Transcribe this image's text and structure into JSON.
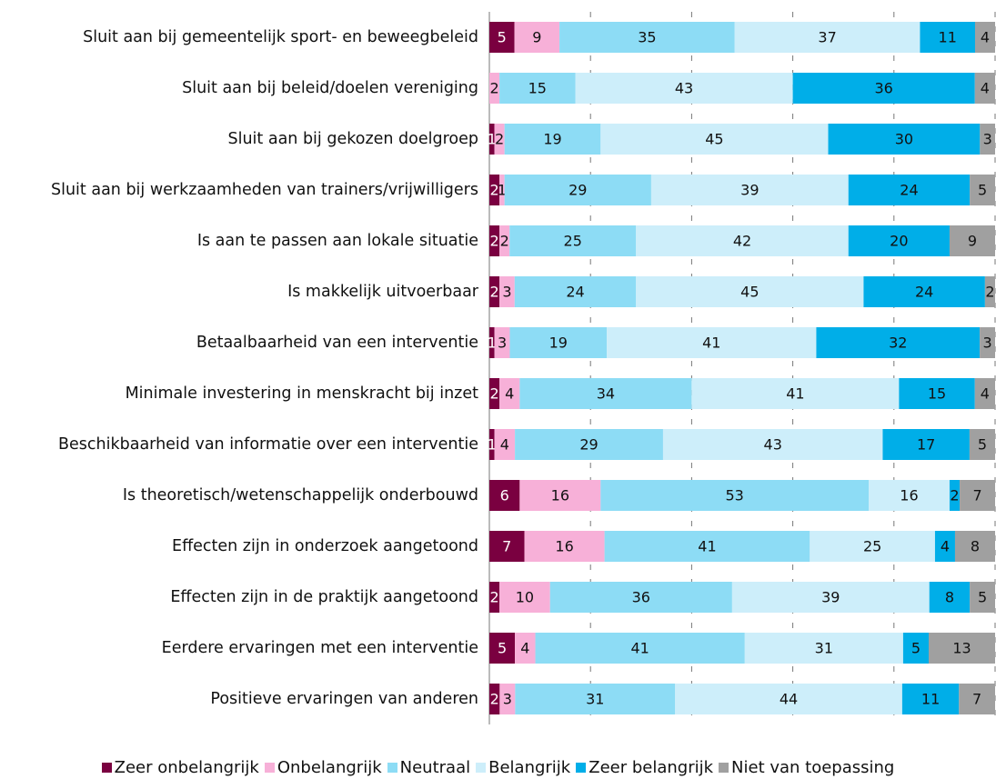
{
  "chart_data": {
    "type": "stacked-bar-100",
    "categories": [
      "Sluit aan bij gemeentelijk sport- en beweegbeleid",
      "Sluit aan bij beleid/doelen vereniging",
      "Sluit aan bij gekozen doelgroep",
      "Sluit aan bij werkzaamheden van trainers/vrijwilligers",
      "Is aan te passen aan lokale situatie",
      "Is makkelijk uitvoerbaar",
      "Betaalbaarheid van een interventie",
      "Minimale investering in menskracht bij inzet",
      "Beschikbaarheid van informatie over een interventie",
      "Is theoretisch/wetenschappelijk onderbouwd",
      "Effecten zijn in onderzoek aangetoond",
      "Effecten zijn in de praktijk aangetoond",
      "Eerdere ervaringen met een interventie",
      "Positieve ervaringen van anderen"
    ],
    "series": [
      {
        "name": "Zeer onbelangrijk",
        "color": "#7a0040",
        "values": [
          5,
          null,
          1,
          2,
          2,
          2,
          1,
          2,
          1,
          6,
          7,
          2,
          5,
          2
        ]
      },
      {
        "name": "Onbelangrijk",
        "color": "#f7b0d8",
        "values": [
          9,
          2,
          2,
          1,
          2,
          3,
          3,
          4,
          4,
          16,
          16,
          10,
          4,
          3
        ]
      },
      {
        "name": "Neutraal",
        "color": "#8ddcf5",
        "values": [
          35,
          15,
          19,
          29,
          25,
          24,
          19,
          34,
          29,
          53,
          41,
          36,
          41,
          31
        ]
      },
      {
        "name": "Belangrijk",
        "color": "#cdeefa",
        "values": [
          37,
          43,
          45,
          39,
          42,
          45,
          41,
          41,
          43,
          16,
          25,
          39,
          31,
          44
        ]
      },
      {
        "name": "Zeer belangrijk",
        "color": "#00aee8",
        "values": [
          11,
          36,
          30,
          24,
          20,
          24,
          32,
          15,
          17,
          2,
          4,
          8,
          5,
          11
        ]
      },
      {
        "name": "Niet van toepassing",
        "color": "#a0a0a0",
        "values": [
          4,
          4,
          3,
          5,
          9,
          2,
          3,
          4,
          5,
          7,
          8,
          5,
          13,
          7
        ]
      }
    ],
    "xlim": [
      0,
      100
    ],
    "xticks": [
      0,
      20,
      40,
      60,
      80,
      100
    ],
    "grid": true,
    "legend": "bottom"
  }
}
